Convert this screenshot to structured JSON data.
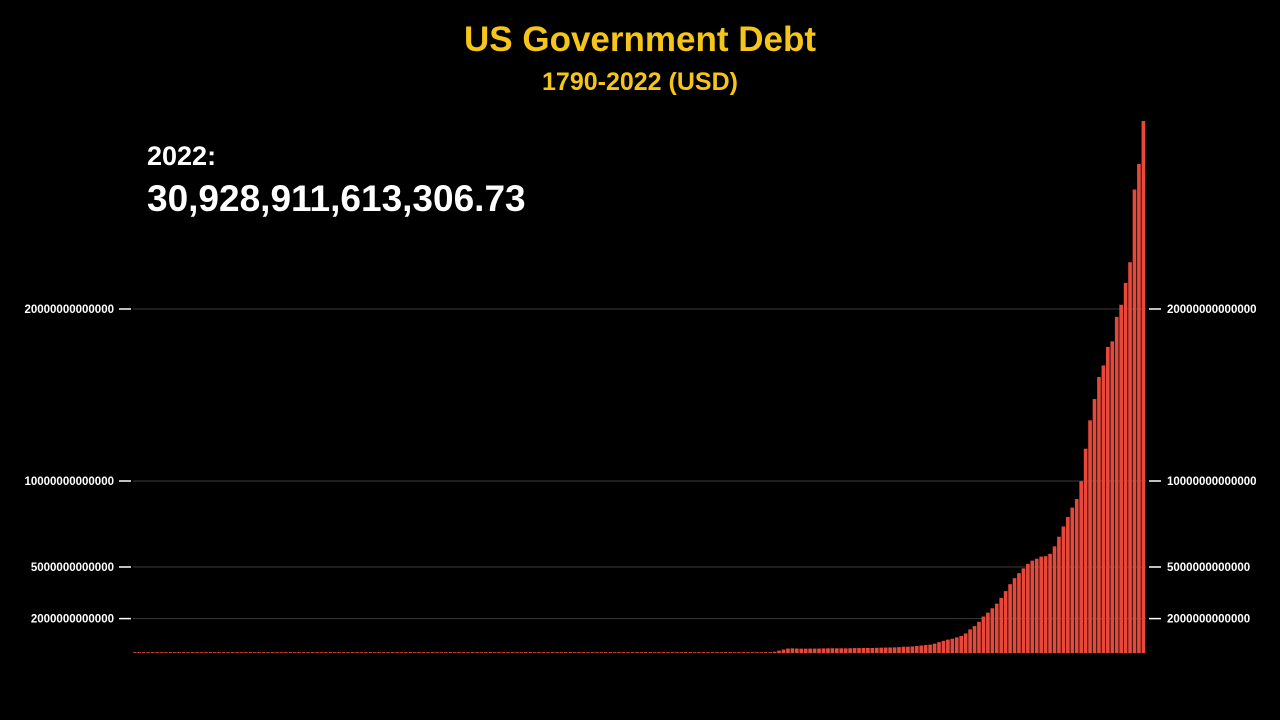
{
  "header": {
    "title": "US Government Debt",
    "subtitle": "1790-2022 (USD)"
  },
  "current": {
    "year_label": "2022:",
    "value_label": "30,928,911,613,306.73"
  },
  "colors": {
    "title": "#f5c518",
    "bar": "#e8483a",
    "text": "#ffffff",
    "gridline": "#3a3a3a",
    "background": "#000000"
  },
  "chart_data": {
    "type": "bar",
    "title": "US Government Debt",
    "subtitle": "1790-2022 (USD)",
    "xlabel": "",
    "ylabel": "",
    "x_start": 1790,
    "x_end": 2022,
    "ylim": [
      0,
      31000000000000
    ],
    "yticks": [
      2000000000000,
      5000000000000,
      10000000000000,
      20000000000000
    ],
    "ytick_labels": [
      "2000000000000",
      "5000000000000",
      "10000000000000",
      "20000000000000"
    ],
    "grid": true,
    "axis_labels_both_sides": true,
    "series": [
      {
        "values": [
          75000000,
          75000000,
          77000000,
          80000000,
          78000000,
          83000000,
          82000000,
          79000000,
          78000000,
          83000000,
          83000000,
          81000000,
          77000000,
          86000000,
          82000000,
          75000000,
          69000000,
          65000000,
          57000000,
          53000000,
          48000000,
          45000000,
          45000000,
          56000000,
          82000000,
          127000000,
          123000000,
          103000000,
          95000000,
          91000000,
          90000000,
          90000000,
          93000000,
          90000000,
          90000000,
          84000000,
          81000000,
          74000000,
          67000000,
          58000000,
          49000000,
          39000000,
          24000000,
          7000000,
          5000000,
          30000,
          40000,
          300000,
          3300000,
          10000000,
          5000000,
          13000000,
          33000000,
          33000000,
          16000000,
          16000000,
          38000000,
          47000000,
          63000000,
          63000000,
          68000000,
          66000000,
          59000000,
          42000000,
          40000000,
          36000000,
          32000000,
          29000000,
          45000000,
          58000000,
          65000000,
          91000000,
          525000000,
          1120000000,
          1820000000,
          2680000000,
          2770000000,
          2680000000,
          2600000000,
          2590000000,
          2440000000,
          2330000000,
          2250000000,
          2250000000,
          2230000000,
          2260000000,
          2090000000,
          2020000000,
          1950000000,
          1850000000,
          1760000000,
          1690000000,
          1580000000,
          1550000000,
          1550000000,
          1590000000,
          1580000000,
          1550000000,
          1550000000,
          1420000000,
          1270000000,
          1220000000,
          1180000000,
          1160000000,
          1170000000,
          1170000000,
          1180000000,
          1190000000,
          1170000000,
          1140000000,
          1150000000,
          1160000000,
          1180000000,
          1190000000,
          1190000000,
          1190000000,
          1230000000,
          1220000000,
          1210000000,
          1220000000,
          1230000000,
          5720000000,
          24300000000,
          25500000000,
          24300000000,
          23900000000,
          23100000000,
          22300000000,
          21200000000,
          20500000000,
          19600000000,
          18500000000,
          17600000000,
          16900000000,
          16200000000,
          16800000000,
          19500000000,
          22500000000,
          27000000000,
          28700000000,
          33800000000,
          36400000000,
          37200000000,
          48900000000,
          72400000000,
          136700000000,
          201000000000,
          258700000000,
          269400000000,
          258300000000,
          252300000000,
          252300000000,
          257000000000,
          255200000000,
          259100000000,
          266000000000,
          270800000000,
          274400000000,
          272700000000,
          272300000000,
          270500000000,
          276300000000,
          284700000000,
          286600000000,
          289500000000,
          290500000000,
          292600000000,
          302900000000,
          310300000000,
          316100000000,
          322300000000,
          328500000000,
          340400000000,
          368700000000,
          365800000000,
          380900000000,
          408200000000,
          435900000000,
          466300000000,
          483900000000,
          541900000000,
          629000000000,
          706400000000,
          776600000000,
          829500000000,
          909000000000,
          994800000000,
          1137300000000,
          1371700000000,
          1564600000000,
          1817400000000,
          2120500000000,
          2346000000000,
          2601100000000,
          2867800000000,
          3206300000000,
          3598200000000,
          4001800000000,
          4351000000000,
          4643300000000,
          4920600000000,
          5181500000000,
          5369200000000,
          5478200000000,
          5605500000000,
          5628700000000,
          5769900000000,
          6198400000000,
          6760000000000,
          7354700000000,
          7905300000000,
          8451400000000,
          8950700000000,
          9986100000000,
          11875900000000,
          13528800000000,
          14764200000000,
          16050900000000,
          16719400000000,
          17794500000000,
          18120100000000,
          19539500000000,
          20244900000000,
          21516100000000,
          22719400000000,
          26945400000000,
          28428900000000,
          30928900000000
        ]
      }
    ]
  }
}
